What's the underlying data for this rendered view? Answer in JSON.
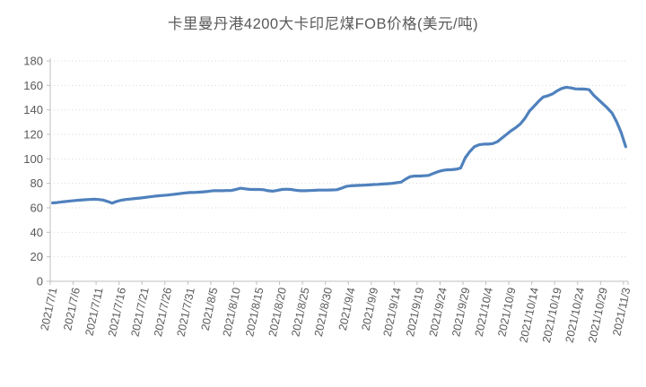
{
  "chart_data": {
    "type": "line",
    "title": "卡里曼丹港4200大卡印尼煤FOB价格(美元/吨)",
    "legend": "none",
    "grid": "horizontal-dotted",
    "ylim": [
      0,
      180
    ],
    "y_ticks": [
      0,
      20,
      40,
      60,
      80,
      100,
      120,
      140,
      160,
      180
    ],
    "x_start_date": "2021/7/1",
    "x_end_date": "2021/11/3",
    "x_frequency": "daily",
    "x_tick_interval_days": 5,
    "x_tick_labels": [
      "2021/7/1",
      "2021/7/6",
      "2021/7/11",
      "2021/7/16",
      "2021/7/21",
      "2021/7/26",
      "2021/7/31",
      "2021/8/5",
      "2021/8/10",
      "2021/8/15",
      "2021/8/20",
      "2021/8/25",
      "2021/8/30",
      "2021/9/4",
      "2021/9/9",
      "2021/9/14",
      "2021/9/19",
      "2021/9/24",
      "2021/9/29",
      "2021/10/4",
      "2021/10/9",
      "2021/10/14",
      "2021/10/19",
      "2021/10/24",
      "2021/10/29",
      "2021/11/3"
    ],
    "series": [
      {
        "values": [
          64.0,
          64.3,
          64.8,
          65.2,
          65.6,
          66.0,
          66.3,
          66.6,
          66.8,
          67.0,
          66.8,
          66.4,
          65.2,
          63.8,
          65.3,
          66.2,
          66.8,
          67.2,
          67.6,
          68.0,
          68.4,
          68.9,
          69.4,
          69.8,
          70.1,
          70.4,
          70.8,
          71.3,
          71.8,
          72.2,
          72.5,
          72.6,
          72.8,
          73.1,
          73.5,
          74.0,
          74.0,
          74.0,
          74.1,
          74.2,
          75.0,
          76.0,
          75.5,
          75.1,
          75.0,
          75.0,
          74.8,
          74.0,
          73.6,
          74.2,
          75.0,
          75.2,
          75.0,
          74.4,
          74.0,
          74.0,
          74.1,
          74.3,
          74.5,
          74.5,
          74.5,
          74.6,
          74.8,
          76.0,
          77.5,
          78.0,
          78.2,
          78.4,
          78.5,
          78.7,
          79.0,
          79.2,
          79.5,
          79.7,
          80.0,
          80.5,
          81.0,
          83.5,
          85.5,
          86.0,
          86.0,
          86.2,
          86.5,
          88.0,
          89.5,
          90.5,
          91.0,
          91.2,
          91.5,
          92.5,
          101.0,
          106.0,
          110.0,
          111.5,
          112.0,
          112.0,
          112.5,
          114.0,
          117.0,
          120.0,
          123.0,
          125.5,
          128.5,
          133.0,
          139.0,
          143.0,
          147.0,
          150.5,
          151.5,
          153.0,
          155.5,
          157.5,
          158.5,
          158.0,
          157.2,
          157.0,
          157.0,
          156.5,
          152.0,
          148.5,
          145.0,
          141.5,
          137.5,
          130.5,
          121.5,
          110.0
        ]
      }
    ],
    "colors": {
      "line": "#4F81BD",
      "gridline": "#D9D9D9",
      "axis": "#BFBFBF",
      "text": "#595959",
      "background": "#FFFFFF"
    }
  }
}
